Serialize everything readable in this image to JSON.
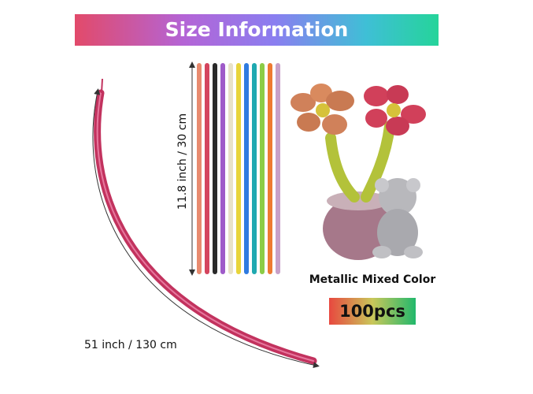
{
  "header": {
    "title": "Size Information"
  },
  "dimensions": {
    "height_label": "11.8 inch / 30 cm",
    "length_label": "51 inch / 130 cm"
  },
  "product": {
    "color_label": "Metallic Mixed Color",
    "quantity": "100pcs"
  }
}
